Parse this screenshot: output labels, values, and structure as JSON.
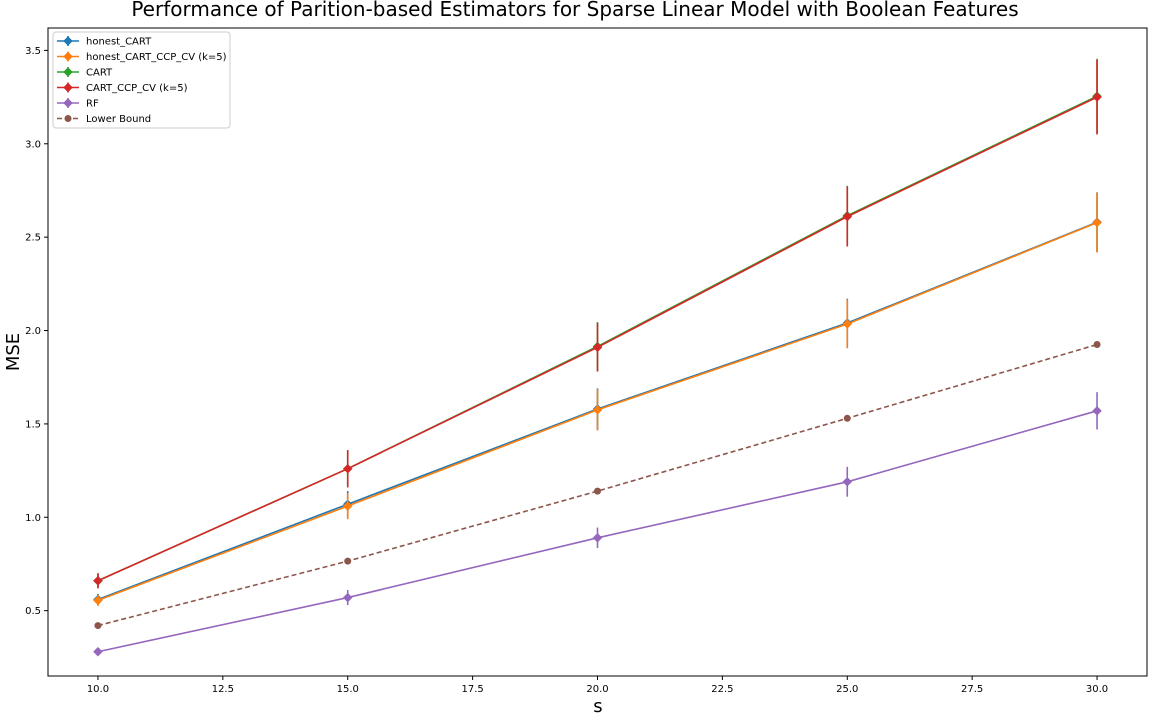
{
  "chart_data": {
    "type": "line",
    "title": "Performance of Parition-based Estimators for Sparse Linear Model with Boolean Features",
    "xlabel": "s",
    "ylabel": "MSE",
    "xlim": [
      9.0,
      31.0
    ],
    "ylim": [
      0.15,
      3.62
    ],
    "xticks": [
      "10.0",
      "12.5",
      "15.0",
      "17.5",
      "20.0",
      "22.5",
      "25.0",
      "27.5",
      "30.0"
    ],
    "yticks": [
      "0.5",
      "1.0",
      "1.5",
      "2.0",
      "2.5",
      "3.0",
      "3.5"
    ],
    "grid": false,
    "legend_position": "top-left",
    "x": [
      10,
      15,
      20,
      25,
      30
    ],
    "series": [
      {
        "name": "honest_CART",
        "color": "#1f77b4",
        "marker": "diamond",
        "dashed": false,
        "values": [
          0.56,
          1.07,
          1.58,
          2.04,
          2.58
        ],
        "err": [
          0.03,
          0.07,
          0.11,
          0.13,
          0.16
        ]
      },
      {
        "name": "honest_CART_CCP_CV (k=5)",
        "color": "#ff7f0e",
        "marker": "diamond",
        "dashed": false,
        "values": [
          0.555,
          1.06,
          1.575,
          2.035,
          2.578
        ],
        "err": [
          0.03,
          0.07,
          0.11,
          0.13,
          0.16
        ]
      },
      {
        "name": "CART",
        "color": "#2ca02c",
        "marker": "diamond",
        "dashed": false,
        "values": [
          0.66,
          1.26,
          1.915,
          2.615,
          3.255
        ],
        "err": [
          0.04,
          0.1,
          0.13,
          0.16,
          0.2
        ]
      },
      {
        "name": "CART_CCP_CV (k=5)",
        "color": "#d62728",
        "marker": "diamond",
        "dashed": false,
        "values": [
          0.66,
          1.26,
          1.91,
          2.61,
          3.25
        ],
        "err": [
          0.04,
          0.1,
          0.13,
          0.16,
          0.2
        ]
      },
      {
        "name": "RF",
        "color": "#9467bd",
        "marker": "diamond",
        "dashed": false,
        "values": [
          0.28,
          0.57,
          0.89,
          1.19,
          1.57
        ],
        "err": [
          0.02,
          0.04,
          0.055,
          0.08,
          0.1
        ]
      },
      {
        "name": "Lower Bound",
        "color": "#8c564b",
        "marker": "circle",
        "dashed": true,
        "values": [
          0.42,
          0.765,
          1.14,
          1.53,
          1.925
        ],
        "err": null
      }
    ]
  }
}
